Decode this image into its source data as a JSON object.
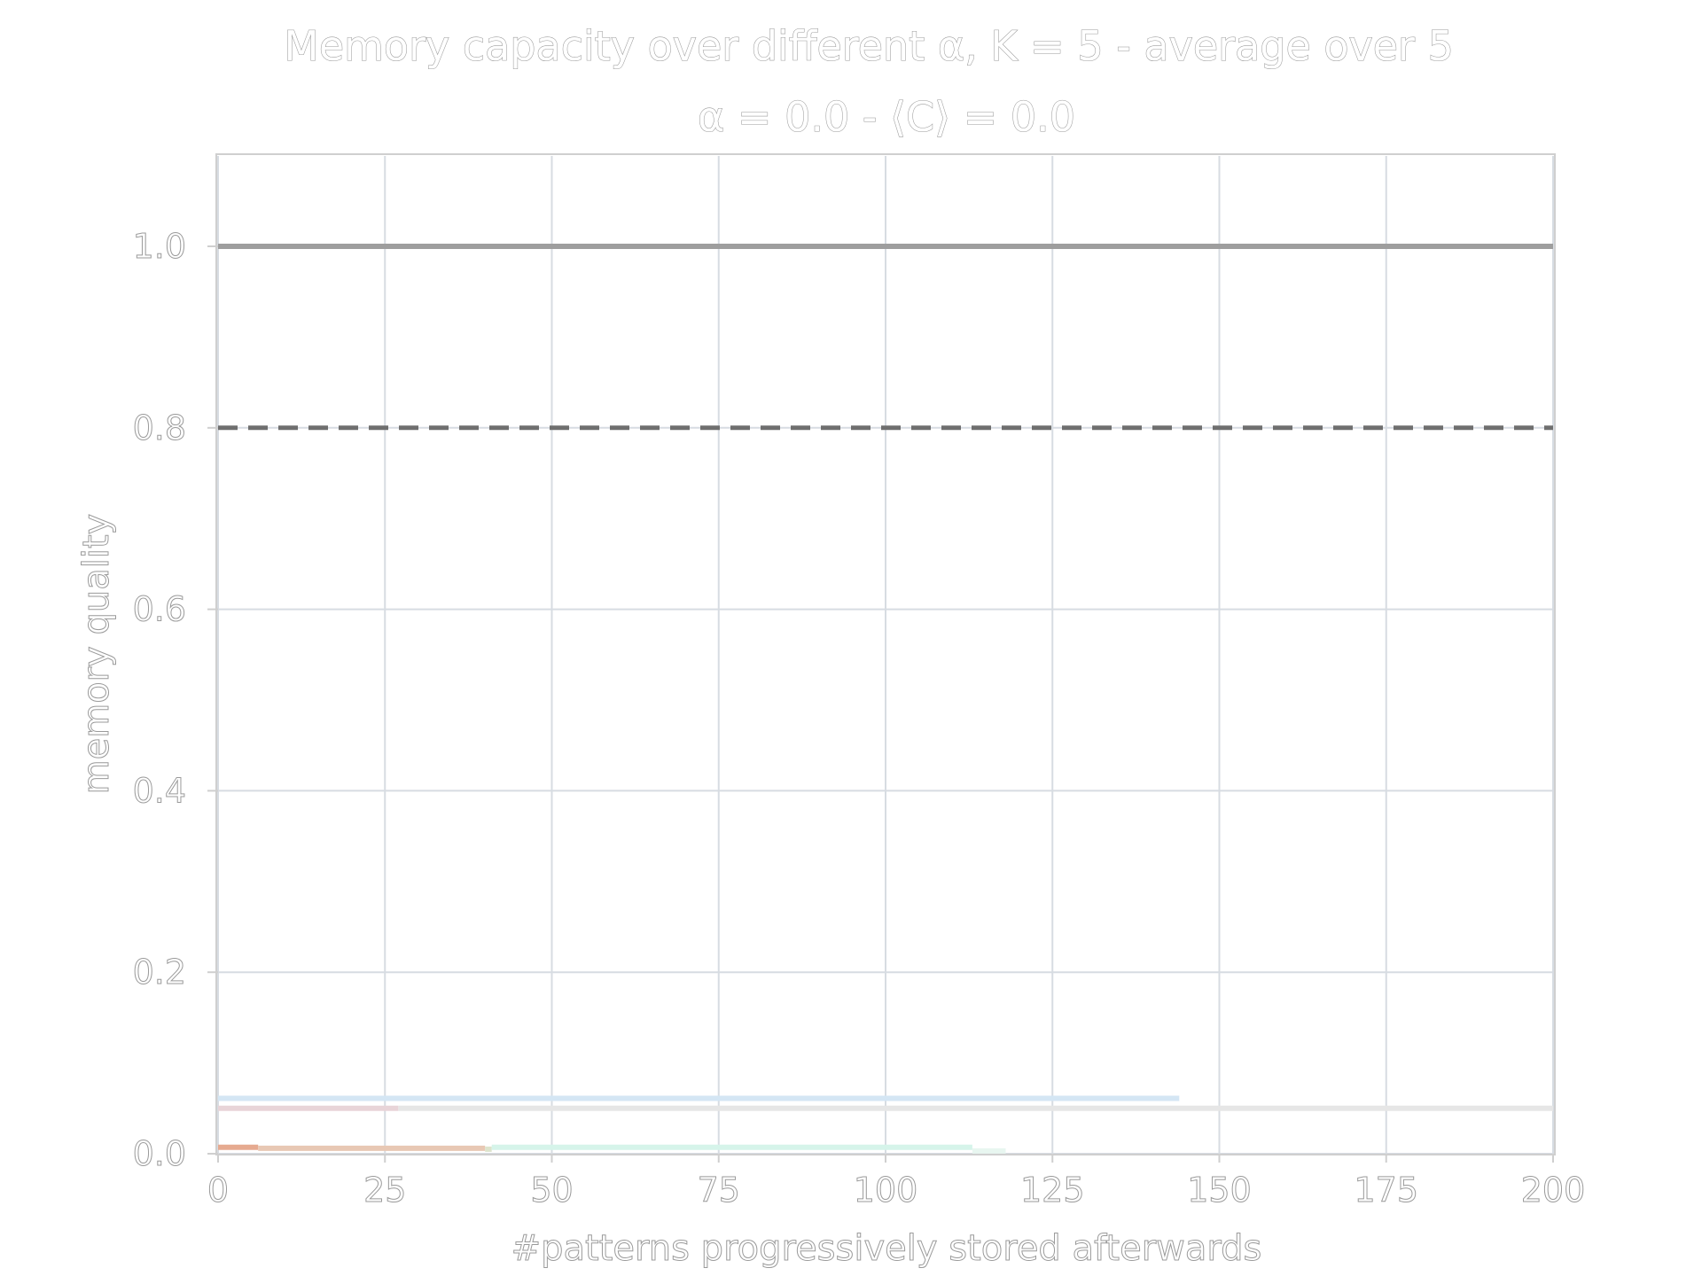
{
  "chart_data": {
    "type": "line",
    "title_line1": "Memory capacity over different α, K = 5 - average over 5",
    "title_line2": "α = 0.0 - ⟨C⟩ = 0.0",
    "xlabel": "#patterns progressively stored afterwards",
    "ylabel": "memory quality",
    "xlim": [
      0,
      200
    ],
    "ylim": [
      0,
      1.1
    ],
    "xticks": [
      0,
      25,
      50,
      75,
      100,
      125,
      150,
      175,
      200
    ],
    "xtick_labels": [
      "0",
      "25",
      "50",
      "75",
      "100",
      "125",
      "150",
      "175",
      "200"
    ],
    "yticks": [
      0.0,
      0.2,
      0.4,
      0.6,
      0.8,
      1.0
    ],
    "ytick_labels": [
      "0.0",
      "0.2",
      "0.4",
      "0.6",
      "0.8",
      "1.0"
    ],
    "grid": true,
    "reference_lines": [
      {
        "y": 1.0,
        "style": "solid",
        "color": "#9e9e9e"
      },
      {
        "y": 0.8,
        "style": "dashed",
        "color": "#6f6f6f"
      }
    ],
    "series": [
      {
        "color": "#d4e6f4",
        "x": [
          0,
          144
        ],
        "y": [
          0.061,
          0.061
        ]
      },
      {
        "color": "#e6e6e6",
        "x": [
          27,
          200
        ],
        "y": [
          0.05,
          0.05
        ]
      },
      {
        "color": "#e8d4d8",
        "x": [
          0,
          27
        ],
        "y": [
          0.05,
          0.05
        ]
      },
      {
        "color": "#e6aa90",
        "x": [
          0,
          6
        ],
        "y": [
          0.007,
          0.007
        ]
      },
      {
        "color": "#e8c8b4",
        "x": [
          6,
          40
        ],
        "y": [
          0.006,
          0.006
        ]
      },
      {
        "color": "#dde4cc",
        "x": [
          40,
          41
        ],
        "y": [
          0.005,
          0.005
        ]
      },
      {
        "color": "#d6f4ea",
        "x": [
          41,
          113
        ],
        "y": [
          0.007,
          0.007
        ]
      },
      {
        "color": "#e8f6f0",
        "x": [
          113,
          118
        ],
        "y": [
          0.003,
          0.003
        ]
      }
    ]
  }
}
